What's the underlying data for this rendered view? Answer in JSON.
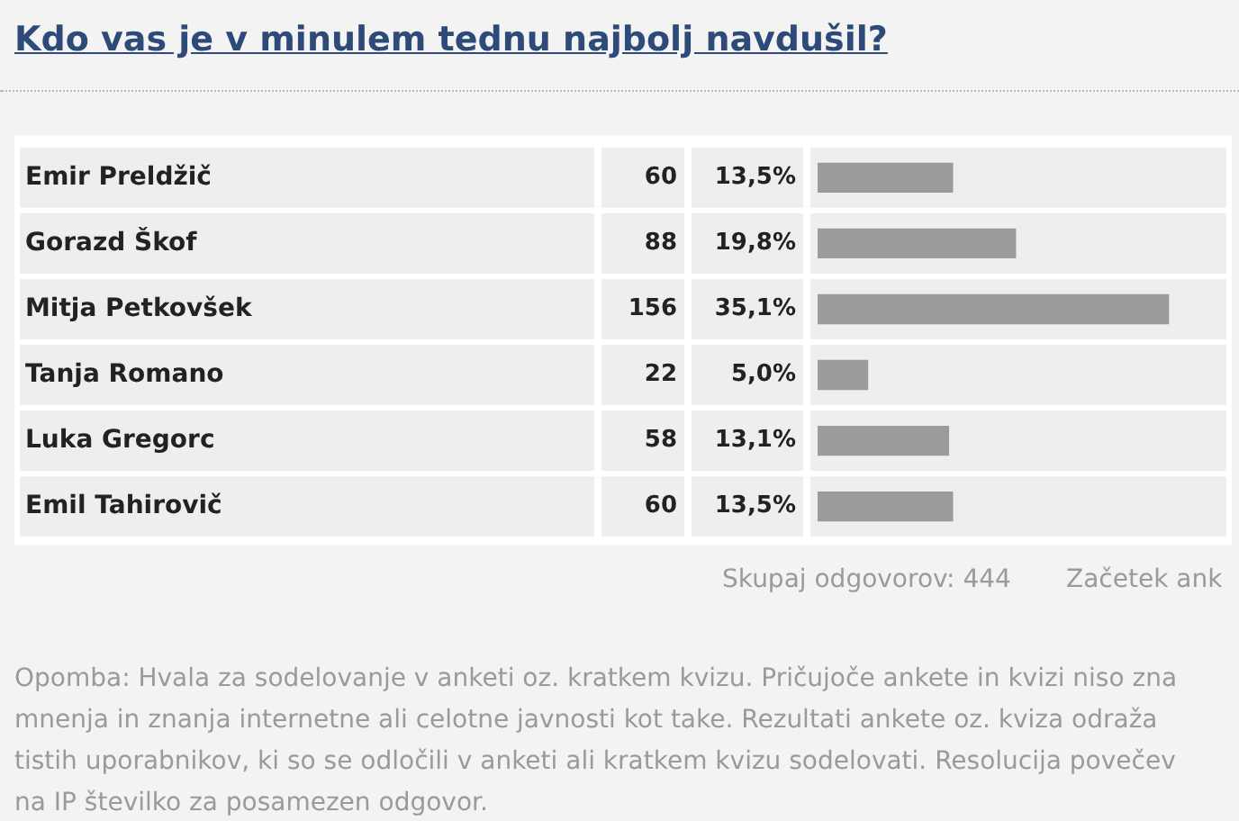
{
  "chart_data": {
    "type": "bar",
    "orientation": "horizontal",
    "title": "Kdo vas je v minulem tednu najbolj navdušil?",
    "categories": [
      "Emir Preldžič",
      "Gorazd Škof",
      "Mitja Petkovšek",
      "Tanja Romano",
      "Luka Gregorc",
      "Emil Tahirovič"
    ],
    "values": [
      13.5,
      19.8,
      35.1,
      5.0,
      13.1,
      13.5
    ],
    "color": "#9b9b9b",
    "value_labels": [
      "13,5%",
      "19,8%",
      "35,1%",
      "5,0%",
      "13,1%",
      "13,5%"
    ],
    "tick_labels": "y",
    "annotations": [
      "60",
      "88",
      "156",
      "22",
      "58",
      "60",
      "Skupaj odgovorov: 444",
      "Začetek ank",
      "Opomba: Hvala za sodelovanje v anketi oz. kratkem kvizu. Pričujoče ankete in kvizi niso zna",
      "mnenja in znanja internetne ali celotne javnosti kot take. Rezultati ankete oz. kviza odraža",
      "tistih uporabnikov, ki so se odločili v anketi ali kratkem kvizu sodelovati. Resolucija povečev",
      "na IP številko za posamezen odgovor."
    ]
  }
}
